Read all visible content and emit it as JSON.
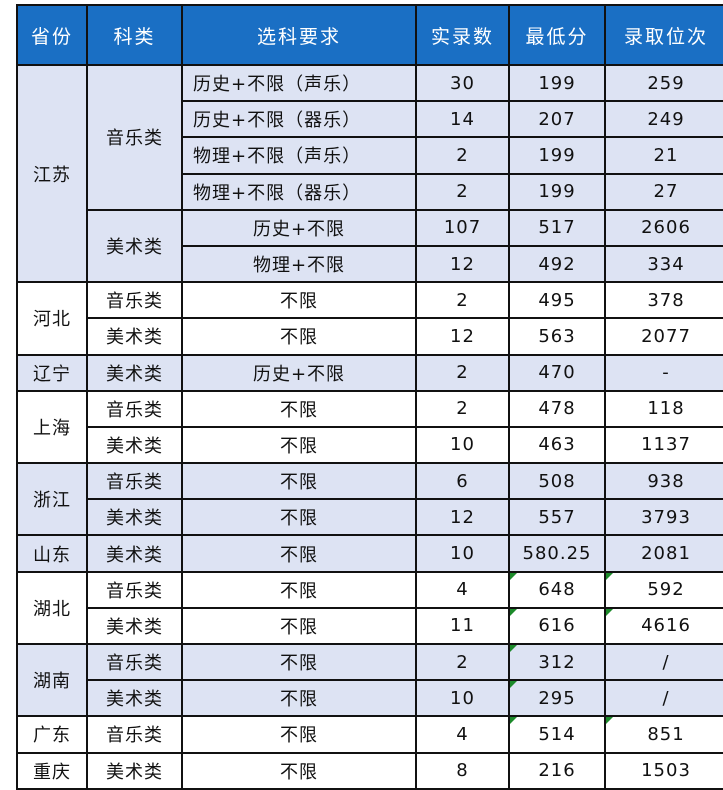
{
  "headers": [
    "省份",
    "科类",
    "选科要求",
    "实录数",
    "最低分",
    "录取位次"
  ],
  "colors": {
    "header_bg": "#1a6fc4",
    "shaded_row": "#dde3f3",
    "error_marker": "#1c8a2a"
  },
  "provinces": [
    {
      "name": "江苏",
      "shaded": true,
      "categories": [
        {
          "name": "音乐类",
          "rows": [
            {
              "requirement": "历史+不限（声乐）",
              "count": "30",
              "min_score": "199",
              "rank": "259",
              "left": true
            },
            {
              "requirement": "历史+不限（器乐）",
              "count": "14",
              "min_score": "207",
              "rank": "249",
              "left": true
            },
            {
              "requirement": "物理+不限（声乐）",
              "count": "2",
              "min_score": "199",
              "rank": "21",
              "left": true
            },
            {
              "requirement": "物理+不限（器乐）",
              "count": "2",
              "min_score": "199",
              "rank": "27",
              "left": true
            }
          ]
        },
        {
          "name": "美术类",
          "rows": [
            {
              "requirement": "历史+不限",
              "count": "107",
              "min_score": "517",
              "rank": "2606"
            },
            {
              "requirement": "物理+不限",
              "count": "12",
              "min_score": "492",
              "rank": "334"
            }
          ]
        }
      ]
    },
    {
      "name": "河北",
      "shaded": false,
      "categories": [
        {
          "name": "音乐类",
          "rows": [
            {
              "requirement": "不限",
              "count": "2",
              "min_score": "495",
              "rank": "378"
            }
          ]
        },
        {
          "name": "美术类",
          "rows": [
            {
              "requirement": "不限",
              "count": "12",
              "min_score": "563",
              "rank": "2077"
            }
          ]
        }
      ]
    },
    {
      "name": "辽宁",
      "shaded": true,
      "categories": [
        {
          "name": "美术类",
          "rows": [
            {
              "requirement": "历史+不限",
              "count": "2",
              "min_score": "470",
              "rank": "-"
            }
          ]
        }
      ]
    },
    {
      "name": "上海",
      "shaded": false,
      "categories": [
        {
          "name": "音乐类",
          "rows": [
            {
              "requirement": "不限",
              "count": "2",
              "min_score": "478",
              "rank": "118"
            }
          ]
        },
        {
          "name": "美术类",
          "rows": [
            {
              "requirement": "不限",
              "count": "10",
              "min_score": "463",
              "rank": "1137"
            }
          ]
        }
      ]
    },
    {
      "name": "浙江",
      "shaded": true,
      "categories": [
        {
          "name": "音乐类",
          "rows": [
            {
              "requirement": "不限",
              "count": "6",
              "min_score": "508",
              "rank": "938"
            }
          ]
        },
        {
          "name": "美术类",
          "rows": [
            {
              "requirement": "不限",
              "count": "12",
              "min_score": "557",
              "rank": "3793"
            }
          ]
        }
      ]
    },
    {
      "name": "山东",
      "shaded": true,
      "categories": [
        {
          "name": "美术类",
          "rows": [
            {
              "requirement": "不限",
              "count": "10",
              "min_score": "580.25",
              "rank": "2081"
            }
          ]
        }
      ]
    },
    {
      "name": "湖北",
      "shaded": false,
      "categories": [
        {
          "name": "音乐类",
          "rows": [
            {
              "requirement": "不限",
              "count": "4",
              "min_score": "648",
              "rank": "592",
              "mark_min": true,
              "mark_rank": true
            }
          ]
        },
        {
          "name": "美术类",
          "rows": [
            {
              "requirement": "不限",
              "count": "11",
              "min_score": "616",
              "rank": "4616",
              "mark_min": true,
              "mark_rank": true
            }
          ]
        }
      ]
    },
    {
      "name": "湖南",
      "shaded": true,
      "categories": [
        {
          "name": "音乐类",
          "rows": [
            {
              "requirement": "不限",
              "count": "2",
              "min_score": "312",
              "rank": "/",
              "mark_min": true
            }
          ]
        },
        {
          "name": "美术类",
          "rows": [
            {
              "requirement": "不限",
              "count": "10",
              "min_score": "295",
              "rank": "/",
              "mark_min": true
            }
          ]
        }
      ]
    },
    {
      "name": "广东",
      "shaded": false,
      "categories": [
        {
          "name": "音乐类",
          "rows": [
            {
              "requirement": "不限",
              "count": "4",
              "min_score": "514",
              "rank": "851",
              "mark_min": true,
              "mark_rank": true
            }
          ]
        }
      ]
    },
    {
      "name": "重庆",
      "shaded": false,
      "categories": [
        {
          "name": "美术类",
          "rows": [
            {
              "requirement": "不限",
              "count": "8",
              "min_score": "216",
              "rank": "1503"
            }
          ]
        }
      ]
    }
  ]
}
